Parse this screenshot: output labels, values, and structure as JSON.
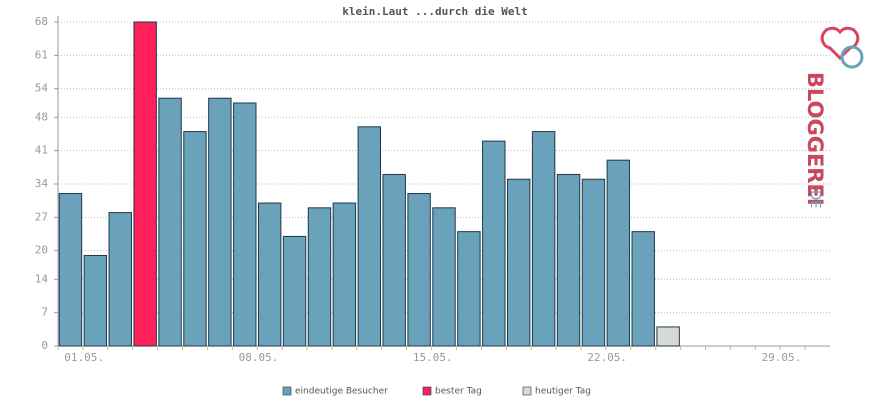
{
  "chart_data": {
    "type": "bar",
    "title": "klein.Laut ...durch die Welt",
    "categories": [
      "01.05.",
      null,
      null,
      null,
      null,
      null,
      null,
      "08.05.",
      null,
      null,
      null,
      null,
      null,
      null,
      "15.05.",
      null,
      null,
      null,
      null,
      null,
      null,
      "22.05.",
      null,
      null,
      null,
      null,
      null,
      null,
      "29.05.",
      null,
      null
    ],
    "series": [
      {
        "name": "eindeutige Besucher",
        "color": "#6aa2bb",
        "values": [
          32,
          19,
          28,
          null,
          52,
          45,
          52,
          51,
          30,
          23,
          29,
          30,
          46,
          36,
          32,
          29,
          24,
          43,
          35,
          45,
          36,
          35,
          39,
          24,
          null,
          null,
          null,
          null,
          null,
          null,
          null
        ]
      },
      {
        "name": "bester Tag",
        "color": "#ff1f5a",
        "values": [
          null,
          null,
          null,
          68,
          null,
          null,
          null,
          null,
          null,
          null,
          null,
          null,
          null,
          null,
          null,
          null,
          null,
          null,
          null,
          null,
          null,
          null,
          null,
          null,
          null,
          null,
          null,
          null,
          null,
          null,
          null
        ]
      },
      {
        "name": "heutiger Tag",
        "color": "#d8d8d8",
        "values": [
          null,
          null,
          null,
          null,
          null,
          null,
          null,
          null,
          null,
          null,
          null,
          null,
          null,
          null,
          null,
          null,
          null,
          null,
          null,
          null,
          null,
          null,
          null,
          null,
          4,
          null,
          null,
          null,
          null,
          null,
          null
        ]
      }
    ],
    "ylim": [
      0,
      68
    ],
    "yticks": [
      0,
      7,
      14,
      20,
      27,
      34,
      41,
      48,
      54,
      61,
      68
    ],
    "grid": true,
    "watermark": [
      "BLOGGEREI",
      ".DE"
    ]
  }
}
